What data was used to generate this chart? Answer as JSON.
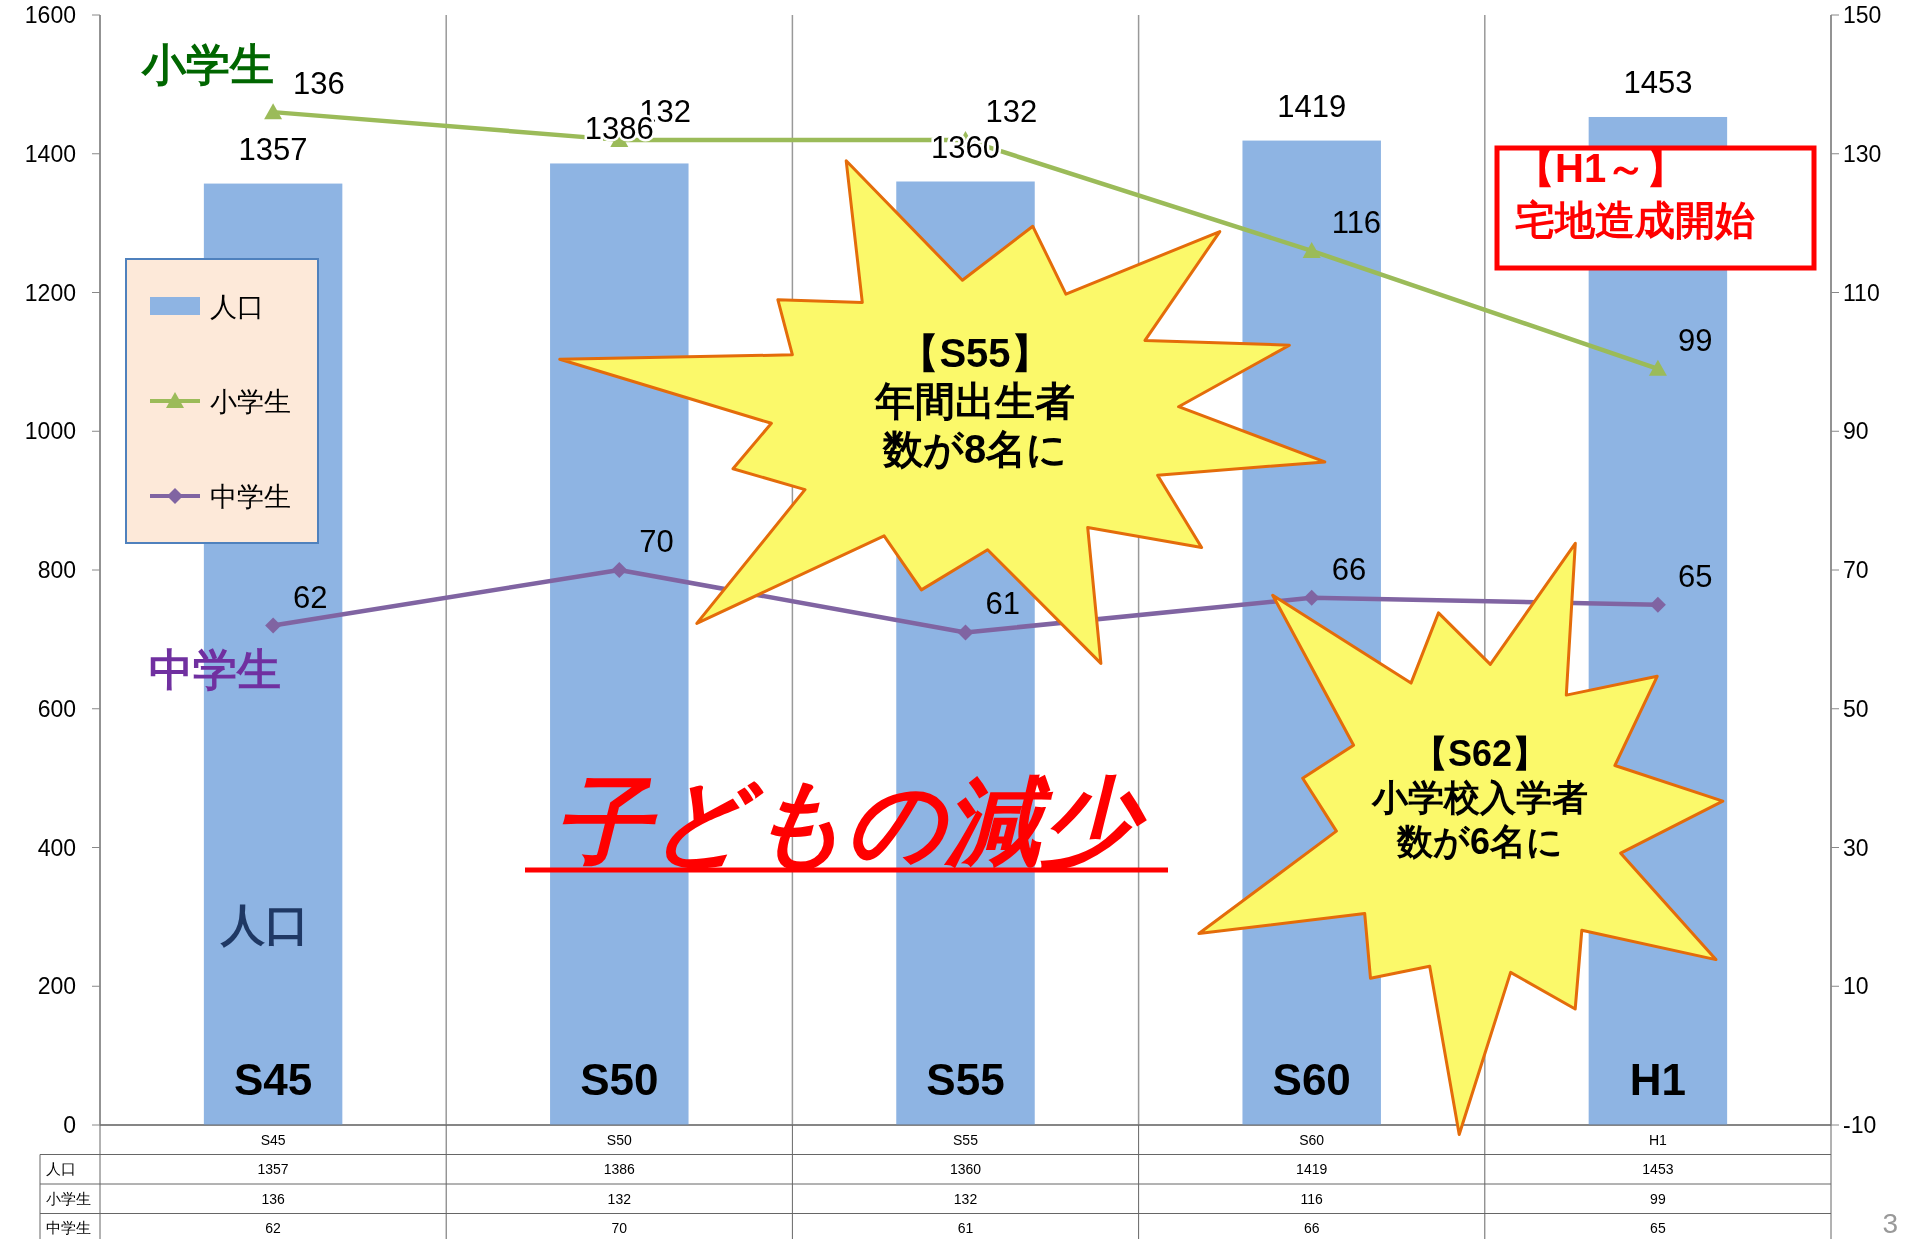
{
  "chart_data": {
    "type": "bar",
    "categories": [
      "S45",
      "S50",
      "S55",
      "S60",
      "H1"
    ],
    "series": [
      {
        "name": "人口",
        "color": "#8eb4e3",
        "values": [
          1357,
          1386,
          1360,
          1419,
          1453
        ],
        "value_labels": [
          "1357",
          "1386",
          "1360",
          "1419",
          "1453"
        ]
      },
      {
        "name": "小学生",
        "type": "line",
        "axis": "y2",
        "color": "#9bbb59",
        "marker": "triangle",
        "values": [
          136,
          132,
          132,
          116,
          99
        ],
        "value_labels": [
          "136",
          "132",
          "132",
          "116",
          "99"
        ]
      },
      {
        "name": "中学生",
        "type": "line",
        "axis": "y2",
        "color": "#8064a2",
        "marker": "diamond",
        "values": [
          62,
          70,
          61,
          66,
          65
        ],
        "value_labels": [
          "62",
          "70",
          "61",
          "66",
          "65"
        ]
      }
    ],
    "ylim": [
      0,
      1600
    ],
    "yticks": [
      0,
      200,
      400,
      600,
      800,
      1000,
      1200,
      1400,
      1600
    ],
    "y2lim": [
      -10,
      150
    ],
    "y2ticks": [
      -10,
      10,
      30,
      50,
      70,
      90,
      110,
      130,
      150
    ],
    "data_labels": true,
    "legend": "left",
    "grid": "x",
    "annotations": [
      "【S55】年間出生者数が8名に",
      "【S62】小学校入学者数が6名に",
      "【H1～】宅地造成開始",
      "子どもの減少",
      "3"
    ]
  }
}
